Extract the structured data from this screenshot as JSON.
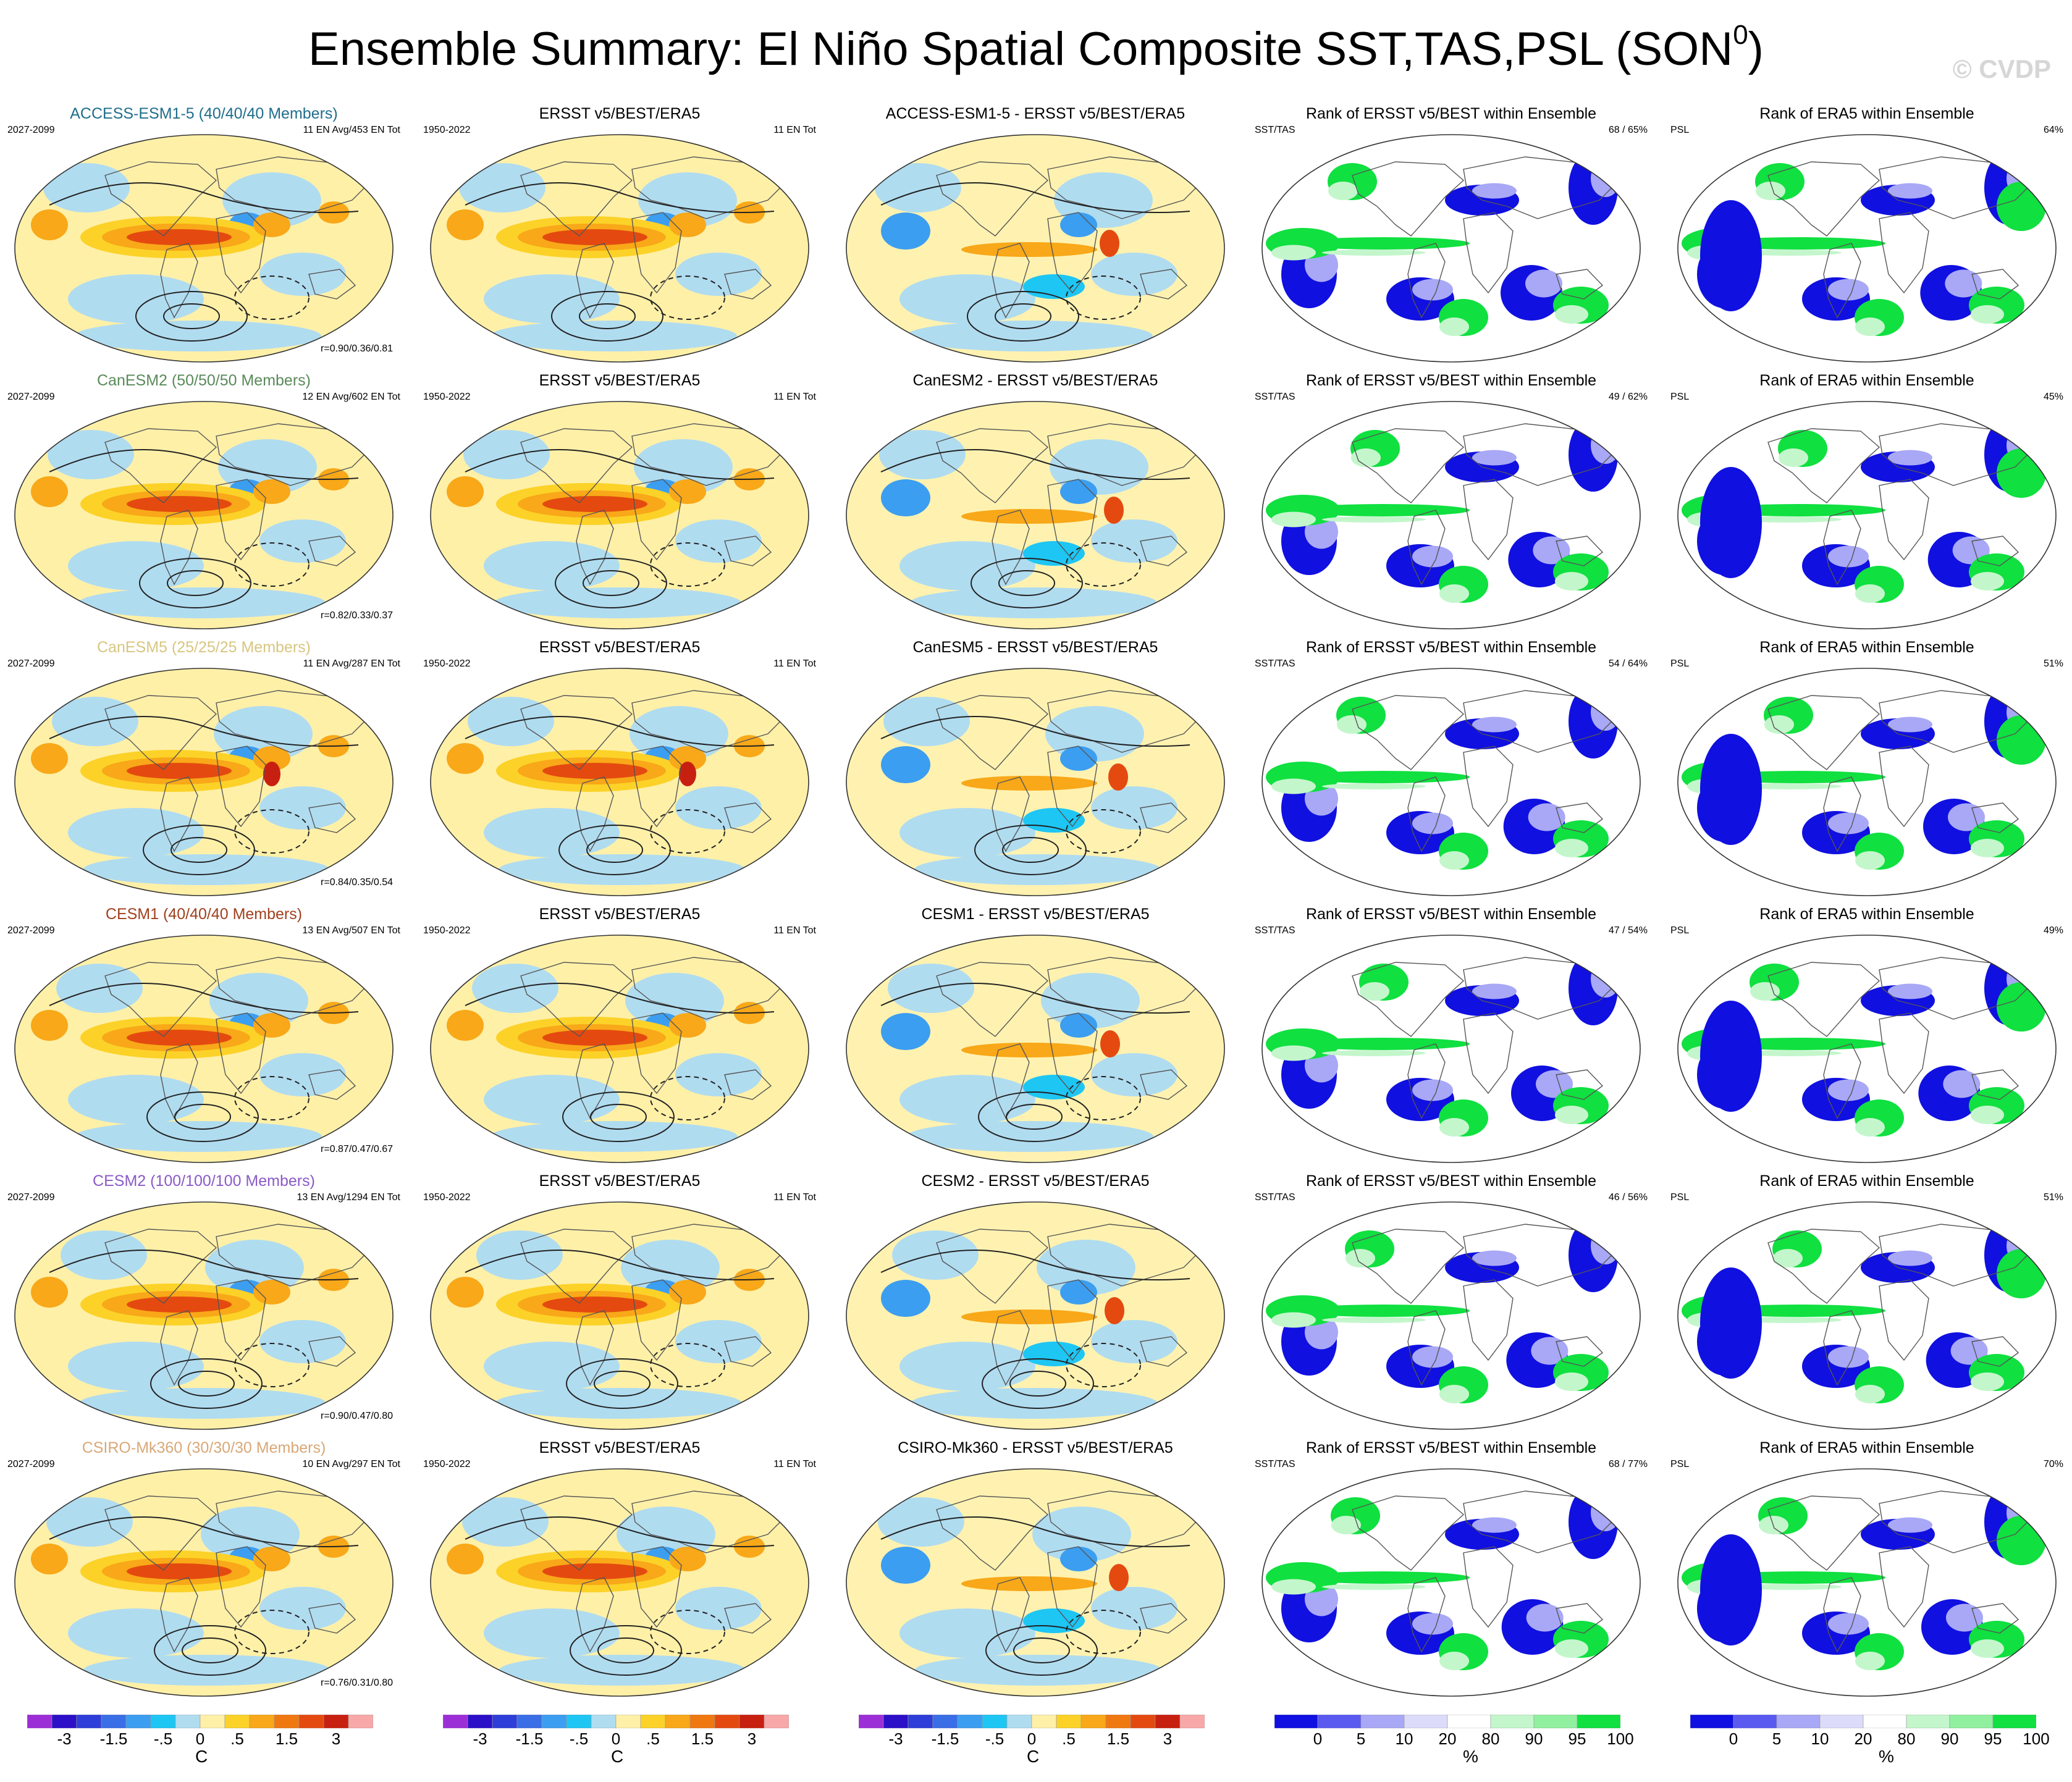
{
  "page": {
    "title": "Ensemble Summary: El Niño Spatial Composite SST,TAS,PSL (SON",
    "title_superscript": "0",
    "title_closing": ")",
    "credit": "© CVDP"
  },
  "chart_data": {
    "type": "heatmap",
    "description_fields": "5 columns x 6 rows of global map panels",
    "rows": [
      {
        "model": "ACCESS-ESM1-5",
        "model_title": "ACCESS-ESM1-5 (40/40/40 Members)",
        "model_color": "#1f6e8c",
        "model_years": "2027-2099",
        "model_count": "11 EN Avg/453 EN Tot",
        "pattern_corr": "r=0.90/0.36/0.81",
        "obs_title": "ERSST v5/BEST/ERA5",
        "obs_years": "1950-2022",
        "obs_count": "11 EN Tot",
        "diff_title": "ACCESS-ESM1-5 - ERSST v5/BEST/ERA5",
        "rank_sst_title": "Rank of ERSST v5/BEST within Ensemble",
        "rank_sst_label": "SST/TAS",
        "rank_sst_pct": "68 /  65%",
        "rank_psl_title": "Rank of ERA5 within Ensemble",
        "rank_psl_label": "PSL",
        "rank_psl_pct": "64%"
      },
      {
        "model": "CanESM2",
        "model_title": "CanESM2 (50/50/50 Members)",
        "model_color": "#5a8a5a",
        "model_years": "2027-2099",
        "model_count": "12 EN Avg/602 EN Tot",
        "pattern_corr": "r=0.82/0.33/0.37",
        "obs_title": "ERSST v5/BEST/ERA5",
        "obs_years": "1950-2022",
        "obs_count": "11 EN Tot",
        "diff_title": "CanESM2 - ERSST v5/BEST/ERA5",
        "rank_sst_title": "Rank of ERSST v5/BEST within Ensemble",
        "rank_sst_label": "SST/TAS",
        "rank_sst_pct": "49 /  62%",
        "rank_psl_title": "Rank of ERA5 within Ensemble",
        "rank_psl_label": "PSL",
        "rank_psl_pct": "45%"
      },
      {
        "model": "CanESM5",
        "model_title": "CanESM5 (25/25/25 Members)",
        "model_color": "#d8c680",
        "model_years": "2027-2099",
        "model_count": "11 EN Avg/287 EN Tot",
        "pattern_corr": "r=0.84/0.35/0.54",
        "obs_title": "ERSST v5/BEST/ERA5",
        "obs_years": "1950-2022",
        "obs_count": "11 EN Tot",
        "diff_title": "CanESM5 - ERSST v5/BEST/ERA5",
        "rank_sst_title": "Rank of ERSST v5/BEST within Ensemble",
        "rank_sst_label": "SST/TAS",
        "rank_sst_pct": "54 /  64%",
        "rank_psl_title": "Rank of ERA5 within Ensemble",
        "rank_psl_label": "PSL",
        "rank_psl_pct": "51%"
      },
      {
        "model": "CESM1",
        "model_title": "CESM1 (40/40/40 Members)",
        "model_color": "#a0401e",
        "model_years": "2027-2099",
        "model_count": "13 EN Avg/507 EN Tot",
        "pattern_corr": "r=0.87/0.47/0.67",
        "obs_title": "ERSST v5/BEST/ERA5",
        "obs_years": "1950-2022",
        "obs_count": "11 EN Tot",
        "diff_title": "CESM1 - ERSST v5/BEST/ERA5",
        "rank_sst_title": "Rank of ERSST v5/BEST within Ensemble",
        "rank_sst_label": "SST/TAS",
        "rank_sst_pct": "47 /  54%",
        "rank_psl_title": "Rank of ERA5 within Ensemble",
        "rank_psl_label": "PSL",
        "rank_psl_pct": "49%"
      },
      {
        "model": "CESM2",
        "model_title": "CESM2 (100/100/100 Members)",
        "model_color": "#8a5ac8",
        "model_years": "2027-2099",
        "model_count": "13 EN Avg/1294 EN Tot",
        "pattern_corr": "r=0.90/0.47/0.80",
        "obs_title": "ERSST v5/BEST/ERA5",
        "obs_years": "1950-2022",
        "obs_count": "11 EN Tot",
        "diff_title": "CESM2 - ERSST v5/BEST/ERA5",
        "rank_sst_title": "Rank of ERSST v5/BEST within Ensemble",
        "rank_sst_label": "SST/TAS",
        "rank_sst_pct": "46 /  56%",
        "rank_psl_title": "Rank of ERA5 within Ensemble",
        "rank_psl_label": "PSL",
        "rank_psl_pct": "51%"
      },
      {
        "model": "CSIRO-Mk360",
        "model_title": "CSIRO-Mk360 (30/30/30 Members)",
        "model_color": "#d8a878",
        "model_years": "2027-2099",
        "model_count": "10 EN Avg/297 EN Tot",
        "pattern_corr": "r=0.76/0.31/0.80",
        "obs_title": "ERSST v5/BEST/ERA5",
        "obs_years": "1950-2022",
        "obs_count": "11 EN Tot",
        "diff_title": "CSIRO-Mk360 - ERSST v5/BEST/ERA5",
        "rank_sst_title": "Rank of ERSST v5/BEST within Ensemble",
        "rank_sst_label": "SST/TAS",
        "rank_sst_pct": "68 /  77%",
        "rank_psl_title": "Rank of ERA5 within Ensemble",
        "rank_psl_label": "PSL",
        "rank_psl_pct": "70%"
      }
    ],
    "colorbar_anomaly": {
      "unit": "C",
      "tick_labels": [
        "-3",
        "-1.5",
        "-.5",
        "0",
        ".5",
        "1.5",
        "3"
      ],
      "tick_positions": [
        1.5,
        3.5,
        5.5,
        7,
        8.5,
        10.5,
        12.5
      ],
      "n_boxes": 14,
      "colors": [
        "#9c2ed8",
        "#2c10c8",
        "#2e3ed8",
        "#3a6ee6",
        "#3c9ef0",
        "#1ec6f4",
        "#b0dcf0",
        "#fff0a8",
        "#fcd228",
        "#f8a818",
        "#f07810",
        "#e44a10",
        "#c82010",
        "#f8a8a8"
      ]
    },
    "colorbar_rank": {
      "unit": "%",
      "tick_labels": [
        "0",
        "5",
        "10",
        "20",
        "80",
        "90",
        "95",
        "100"
      ],
      "tick_positions": [
        1,
        2,
        3,
        4,
        5,
        6,
        7,
        8
      ],
      "n_boxes": 8,
      "colors": [
        "#1010e0",
        "#5a5af0",
        "#a8a8f6",
        "#dcdcfa",
        "#ffffff",
        "#c4f6cc",
        "#90f0a0",
        "#10e040"
      ]
    }
  }
}
